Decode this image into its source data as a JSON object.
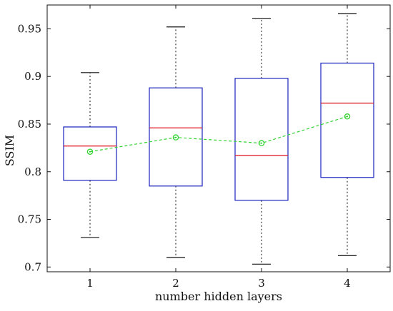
{
  "chart_data": {
    "type": "box",
    "xlabel": "number hidden layers",
    "ylabel": "SSIM",
    "ylim": [
      0.695,
      0.975
    ],
    "xlim": [
      0.5,
      4.5
    ],
    "y_ticks": [
      0.7,
      0.75,
      0.8,
      0.85,
      0.9,
      0.95
    ],
    "y_tick_labels": [
      "0.7",
      "0.75",
      "0.8",
      "0.85",
      "0.9",
      "0.95"
    ],
    "categories": [
      "1",
      "2",
      "3",
      "4"
    ],
    "boxes": [
      {
        "category": "1",
        "whisker_low": 0.731,
        "q1": 0.791,
        "median": 0.827,
        "q3": 0.847,
        "whisker_high": 0.904,
        "mean": 0.821
      },
      {
        "category": "2",
        "whisker_low": 0.71,
        "q1": 0.785,
        "median": 0.846,
        "q3": 0.888,
        "whisker_high": 0.952,
        "mean": 0.836
      },
      {
        "category": "3",
        "whisker_low": 0.703,
        "q1": 0.77,
        "median": 0.817,
        "q3": 0.898,
        "whisker_high": 0.961,
        "mean": 0.83
      },
      {
        "category": "4",
        "whisker_low": 0.712,
        "q1": 0.794,
        "median": 0.872,
        "q3": 0.914,
        "whisker_high": 0.966,
        "mean": 0.858
      }
    ],
    "colors": {
      "box": "#2b33c4",
      "median": "#e0262f",
      "whisker": "#111111",
      "mean": "#32d332",
      "axis": "#111111"
    },
    "grid": false,
    "legend": "none"
  }
}
